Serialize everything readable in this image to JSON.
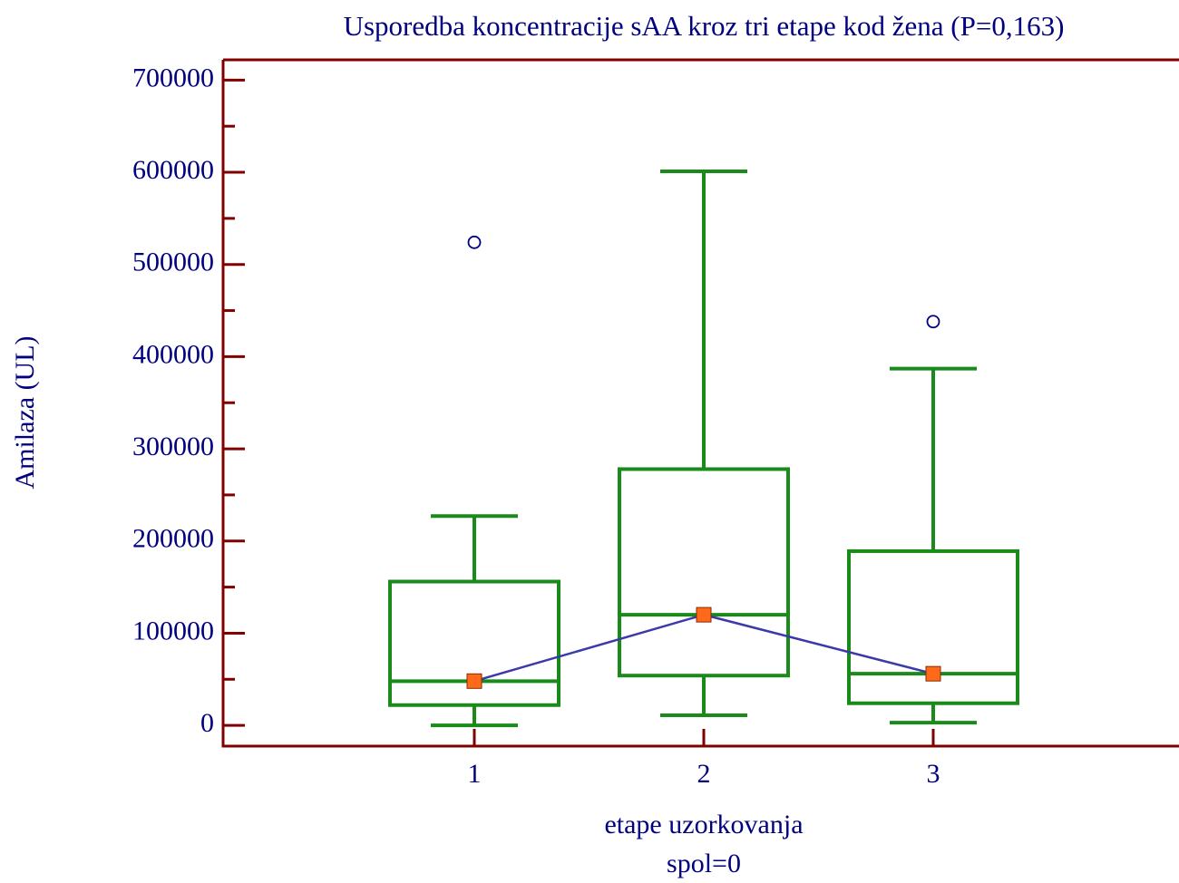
{
  "chart_data": {
    "type": "box",
    "title": "Usporedba koncentracije sAA kroz tri etape kod žena (P=0,163)",
    "ylabel": "Amilaza (UL)",
    "xlabel": "etape uzorkovanja",
    "xsublabel": "spol=0",
    "categories": [
      "1",
      "2",
      "3"
    ],
    "boxes": [
      {
        "min": 0,
        "q1": 22000,
        "median": 48000,
        "q3": 156000,
        "max": 227000,
        "outliers": [
          524000
        ]
      },
      {
        "min": 11000,
        "q1": 54000,
        "median": 120000,
        "q3": 278000,
        "max": 601000,
        "outliers": []
      },
      {
        "min": 3000,
        "q1": 24000,
        "median": 56000,
        "q3": 189000,
        "max": 387000,
        "outliers": [
          438000
        ]
      }
    ],
    "ylim": [
      -22500,
      722000
    ],
    "yticks": [
      0,
      100000,
      200000,
      300000,
      400000,
      500000,
      600000,
      700000
    ],
    "yminorticks": [
      50000,
      150000,
      250000,
      350000,
      450000,
      550000,
      650000
    ],
    "box_color": "#1a8a1a",
    "median_line_color": "#3a3aa8",
    "median_marker_color": "#ff6a1a",
    "outlier_color": "#000080",
    "axis_color": "#800000"
  }
}
